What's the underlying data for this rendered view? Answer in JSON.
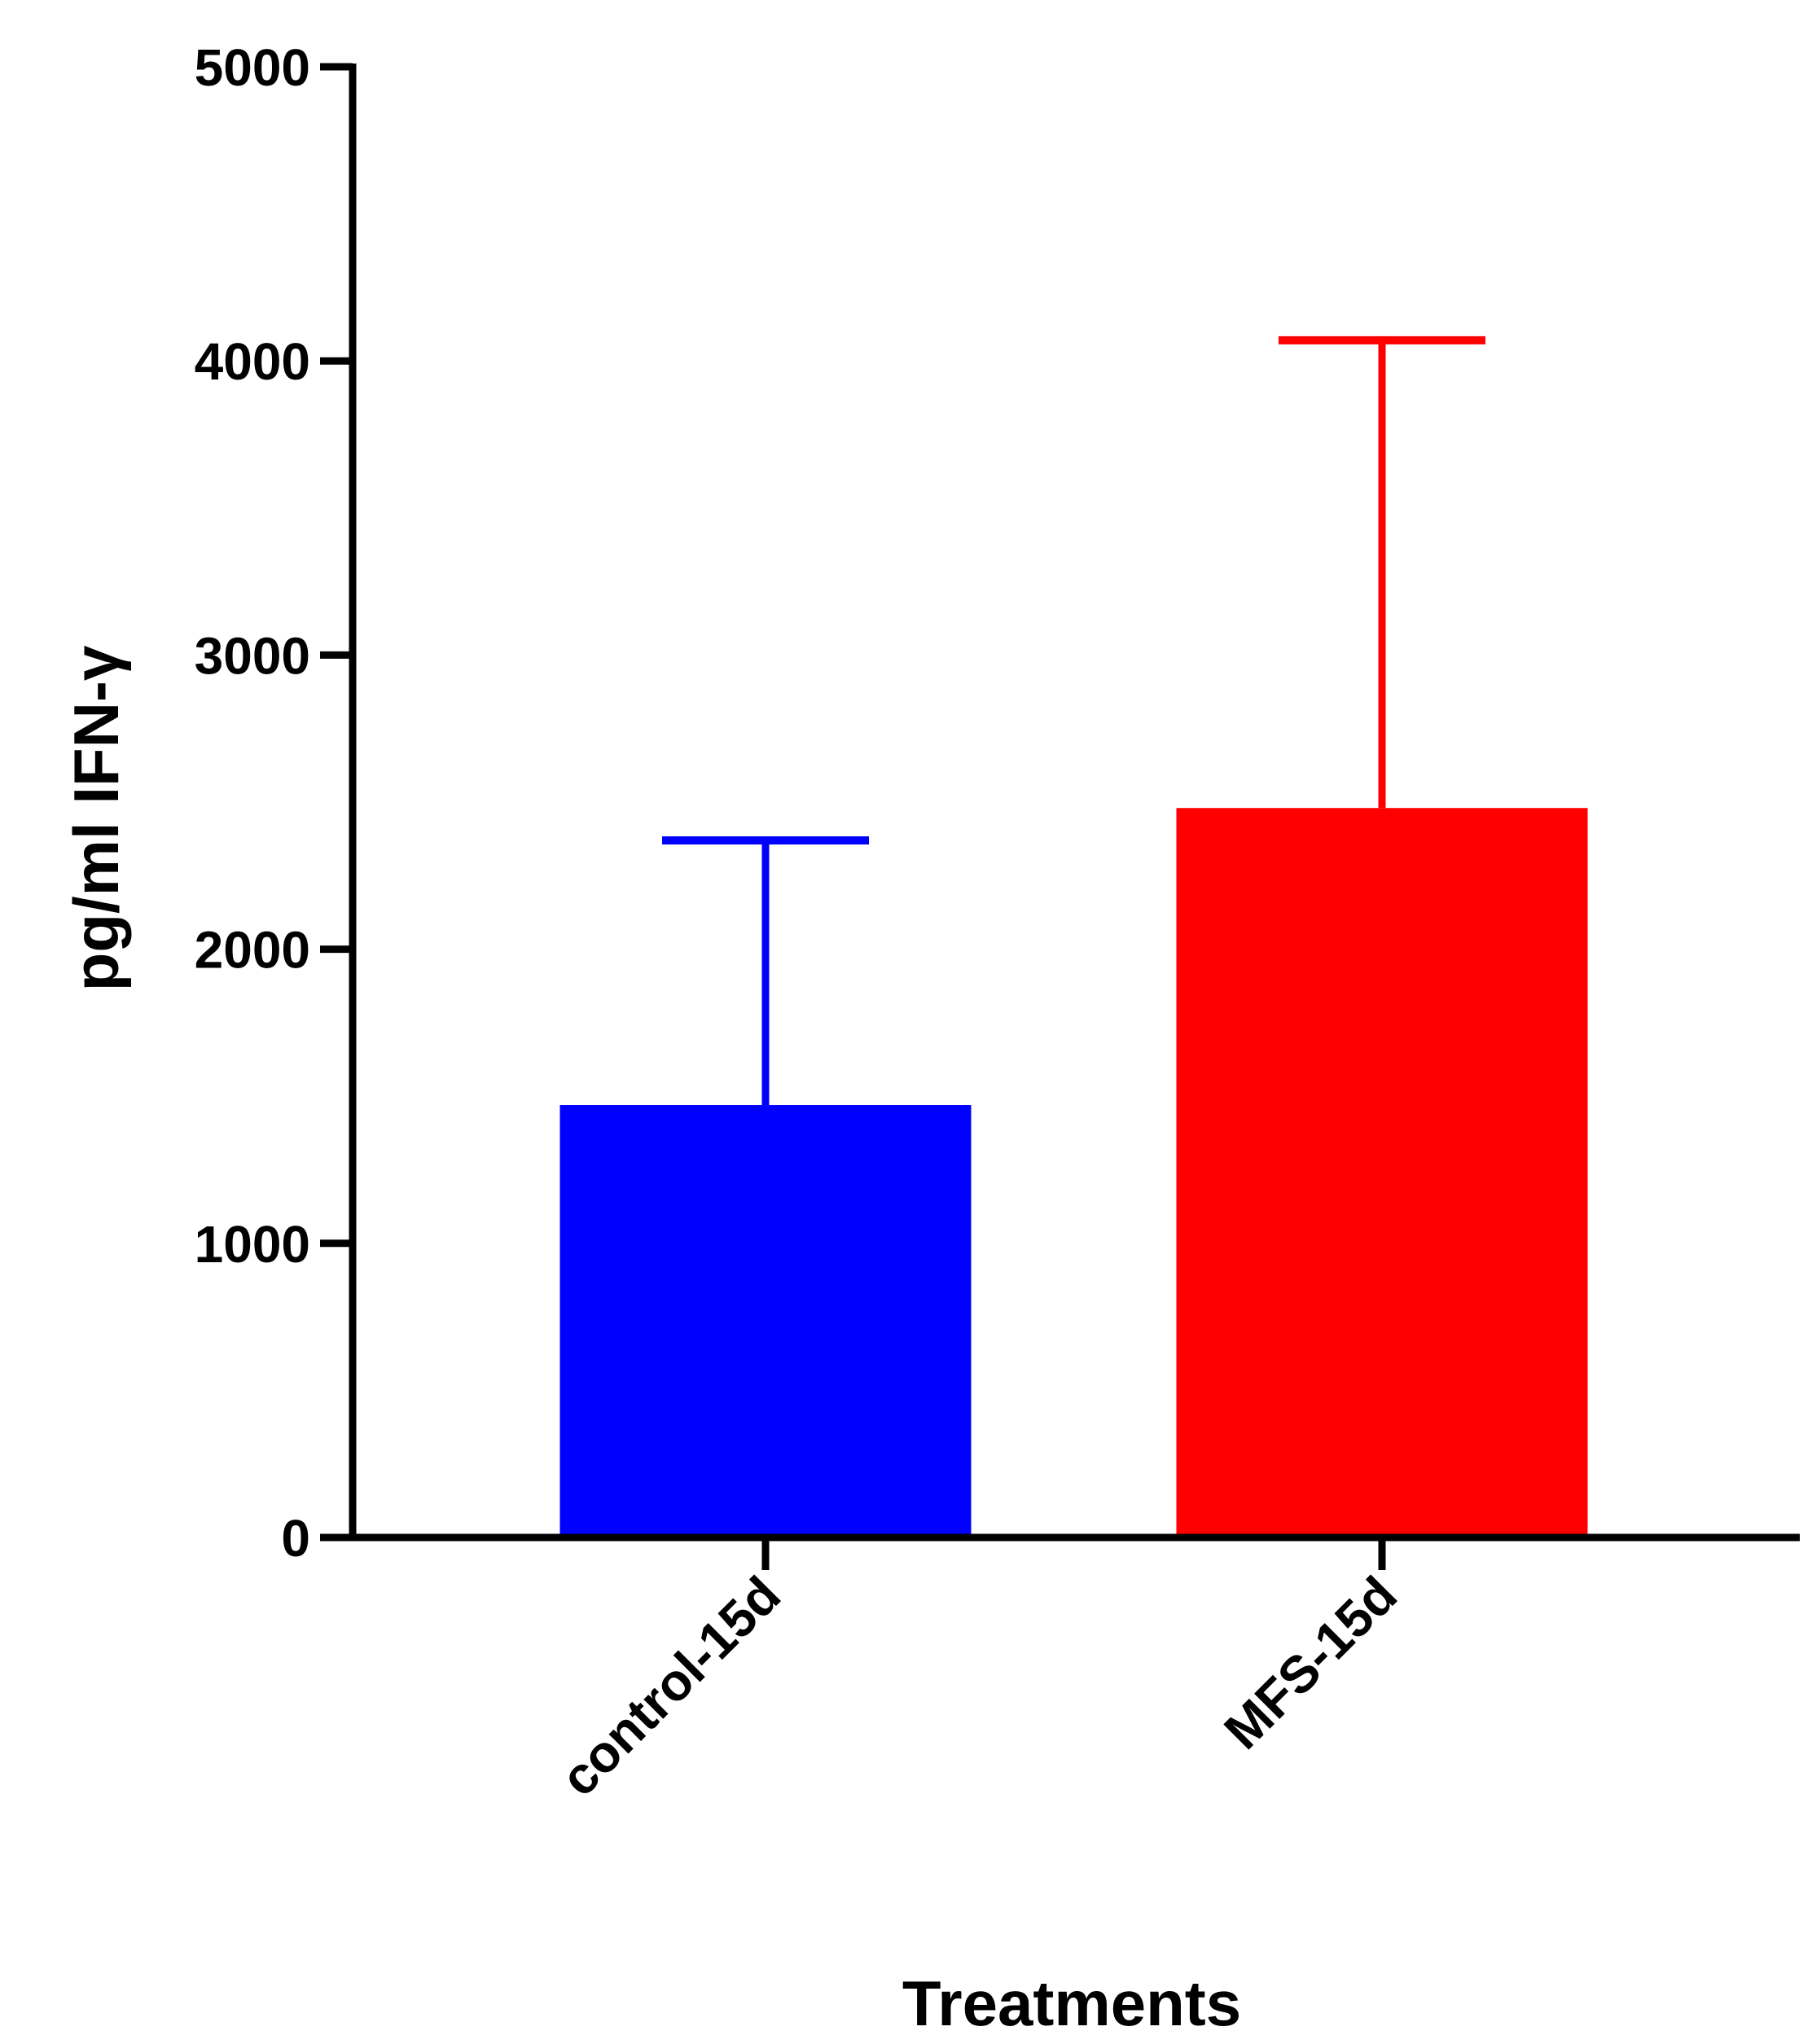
{
  "chart_data": {
    "type": "bar",
    "title": "",
    "categories": [
      "control-15d",
      "MFS-15d"
    ],
    "values": [
      1470,
      2480
    ],
    "errors_upper": [
      2370,
      4070
    ],
    "colors": [
      "#0000ff",
      "#ff0000"
    ],
    "xlabel": "Treatments",
    "ylabel": "pg/ml IFN-γ",
    "ylim": [
      0,
      5000
    ],
    "yticks": [
      "0",
      "1000",
      "2000",
      "3000",
      "4000",
      "5000"
    ],
    "grid": false,
    "legend": "none"
  }
}
